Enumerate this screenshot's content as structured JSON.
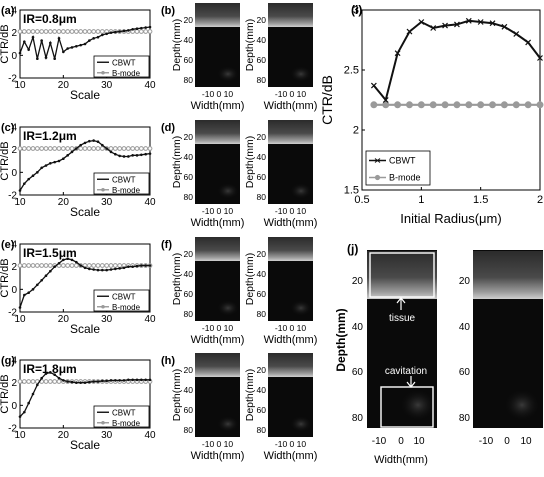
{
  "panel_labels": {
    "a": "(a)",
    "b": "(b)",
    "c": "(c)",
    "d": "(d)",
    "e": "(e)",
    "f": "(f)",
    "g": "(g)",
    "h": "(h)",
    "i": "(i)",
    "j": "(j)"
  },
  "axis_text": {
    "ctr_db": "CTR/dB",
    "scale": "Scale",
    "depth_mm": "Depth(mm)",
    "width_mm": "Width(mm)",
    "initial_radius": "Initial Radius(μm)"
  },
  "legend": {
    "cbwt": "CBWT",
    "bmode": "B-mode"
  },
  "annotations": {
    "tissue": "tissue",
    "cavitation": "cavitation"
  },
  "image_ticks": {
    "depth_small": [
      "20",
      "40",
      "60",
      "80"
    ],
    "width_small": "-10  0  10",
    "depth_large": [
      "20",
      "40",
      "60",
      "80"
    ],
    "width_large": [
      "-10",
      "0",
      "10"
    ]
  },
  "colors": {
    "cbwt": "#111111",
    "bmode": "#9a9a9a",
    "ultrasound_bg": "#0a0a0a",
    "ultrasound_tissue": "#8a8a8a"
  },
  "chart_data": [
    {
      "panel": "a",
      "type": "line",
      "title": "IR=0.8μm",
      "xlabel": "Scale",
      "ylabel": "CTR/dB",
      "xlim": [
        10,
        40
      ],
      "ylim": [
        -2,
        4
      ],
      "xticks": [
        10,
        20,
        30,
        40
      ],
      "yticks": [
        -2,
        0,
        2,
        4
      ],
      "legend": "bottom-right",
      "x": [
        10,
        11,
        12,
        13,
        14,
        15,
        16,
        17,
        18,
        19,
        20,
        21,
        22,
        23,
        24,
        25,
        26,
        27,
        28,
        29,
        30,
        31,
        32,
        33,
        34,
        35,
        36,
        37,
        38,
        39,
        40
      ],
      "series": [
        {
          "name": "CBWT",
          "values": [
            0.2,
            1.2,
            0.5,
            1.6,
            -0.3,
            1.3,
            -0.2,
            1.1,
            -0.3,
            1.5,
            0.3,
            0.6,
            0.7,
            0.8,
            0.9,
            1.0,
            1.3,
            1.5,
            1.6,
            1.8,
            1.9,
            2.0,
            2.05,
            2.1,
            2.15,
            2.2,
            2.3,
            2.35,
            2.4,
            2.45,
            2.5
          ]
        },
        {
          "name": "B-mode",
          "values": [
            2.1,
            2.1,
            2.1,
            2.1,
            2.1,
            2.1,
            2.1,
            2.1,
            2.1,
            2.1,
            2.1,
            2.1,
            2.1,
            2.1,
            2.1,
            2.1,
            2.1,
            2.1,
            2.1,
            2.1,
            2.1,
            2.1,
            2.1,
            2.1,
            2.1,
            2.1,
            2.1,
            2.1,
            2.1,
            2.1,
            2.1
          ]
        }
      ]
    },
    {
      "panel": "c",
      "type": "line",
      "title": "IR=1.2μm",
      "xlabel": "Scale",
      "ylabel": "CTR/dB",
      "xlim": [
        10,
        40
      ],
      "ylim": [
        -2,
        4
      ],
      "xticks": [
        10,
        20,
        30,
        40
      ],
      "yticks": [
        -2,
        0,
        2,
        4
      ],
      "legend": "bottom-right",
      "x": [
        10,
        11,
        12,
        13,
        14,
        15,
        16,
        17,
        18,
        19,
        20,
        21,
        22,
        23,
        24,
        25,
        26,
        27,
        28,
        29,
        30,
        31,
        32,
        33,
        34,
        35,
        36,
        37,
        38,
        39,
        40
      ],
      "series": [
        {
          "name": "CBWT",
          "values": [
            -1.6,
            -1.0,
            -0.6,
            -0.3,
            0.0,
            0.4,
            0.6,
            0.8,
            0.9,
            1.0,
            1.2,
            1.5,
            1.8,
            2.1,
            2.4,
            2.6,
            2.75,
            2.8,
            2.7,
            2.4,
            2.1,
            1.8,
            1.6,
            1.45,
            1.4,
            1.4,
            1.5,
            1.5,
            1.55,
            1.6,
            1.65
          ]
        },
        {
          "name": "B-mode",
          "values": [
            2.1,
            2.1,
            2.1,
            2.1,
            2.1,
            2.1,
            2.1,
            2.1,
            2.1,
            2.1,
            2.1,
            2.1,
            2.1,
            2.1,
            2.1,
            2.1,
            2.1,
            2.1,
            2.1,
            2.1,
            2.1,
            2.1,
            2.1,
            2.1,
            2.1,
            2.1,
            2.1,
            2.1,
            2.1,
            2.1,
            2.1
          ]
        }
      ]
    },
    {
      "panel": "e",
      "type": "line",
      "title": "IR=1.5μm",
      "xlabel": "Scale",
      "ylabel": "CTR/dB",
      "xlim": [
        10,
        40
      ],
      "ylim": [
        -2,
        4
      ],
      "xticks": [
        10,
        20,
        30,
        40
      ],
      "yticks": [
        -2,
        0,
        2,
        4
      ],
      "legend": "bottom-right",
      "x": [
        10,
        11,
        12,
        13,
        14,
        15,
        16,
        17,
        18,
        19,
        20,
        21,
        22,
        23,
        24,
        25,
        26,
        27,
        28,
        29,
        30,
        31,
        32,
        33,
        34,
        35,
        36,
        37,
        38,
        39,
        40
      ],
      "series": [
        {
          "name": "CBWT",
          "values": [
            -1.6,
            -0.5,
            -0.3,
            0.0,
            0.4,
            0.8,
            1.2,
            1.6,
            2.0,
            2.3,
            2.6,
            2.7,
            2.6,
            2.4,
            2.1,
            1.9,
            1.8,
            1.75,
            1.7,
            1.7,
            1.7,
            1.75,
            1.8,
            1.85,
            1.9,
            2.0,
            2.0,
            2.05,
            2.1,
            2.1,
            2.1
          ]
        },
        {
          "name": "B-mode",
          "values": [
            2.1,
            2.1,
            2.1,
            2.1,
            2.1,
            2.1,
            2.1,
            2.1,
            2.1,
            2.1,
            2.1,
            2.1,
            2.1,
            2.1,
            2.1,
            2.1,
            2.1,
            2.1,
            2.1,
            2.1,
            2.1,
            2.1,
            2.1,
            2.1,
            2.1,
            2.1,
            2.1,
            2.1,
            2.1,
            2.1,
            2.1
          ]
        }
      ]
    },
    {
      "panel": "g",
      "type": "line",
      "title": "IR=1.8μm",
      "xlabel": "Scale",
      "ylabel": "CTR/dB",
      "xlim": [
        10,
        40
      ],
      "ylim": [
        -2,
        4
      ],
      "xticks": [
        10,
        20,
        30,
        40
      ],
      "yticks": [
        -2,
        0,
        2,
        4
      ],
      "legend": "bottom-right",
      "x": [
        10,
        11,
        12,
        13,
        14,
        15,
        16,
        17,
        18,
        19,
        20,
        21,
        22,
        23,
        24,
        25,
        26,
        27,
        28,
        29,
        30,
        31,
        32,
        33,
        34,
        35,
        36,
        37,
        38,
        39,
        40
      ],
      "series": [
        {
          "name": "CBWT",
          "values": [
            -1.0,
            -0.6,
            0.2,
            1.0,
            1.8,
            2.4,
            2.8,
            2.9,
            2.7,
            2.4,
            2.2,
            2.1,
            2.05,
            2.0,
            2.0,
            2.0,
            2.05,
            2.1,
            2.1,
            2.15,
            2.15,
            2.2,
            2.2,
            2.2,
            2.2,
            2.25,
            2.25,
            2.25,
            2.25,
            2.25,
            2.25
          ]
        },
        {
          "name": "B-mode",
          "values": [
            2.1,
            2.1,
            2.1,
            2.1,
            2.1,
            2.1,
            2.1,
            2.1,
            2.1,
            2.1,
            2.1,
            2.1,
            2.1,
            2.1,
            2.1,
            2.1,
            2.1,
            2.1,
            2.1,
            2.1,
            2.1,
            2.1,
            2.1,
            2.1,
            2.1,
            2.1,
            2.1,
            2.1,
            2.1,
            2.1,
            2.1
          ]
        }
      ]
    },
    {
      "panel": "i",
      "type": "line",
      "title": "",
      "xlabel": "Initial Radius(μm)",
      "ylabel": "CTR/dB",
      "xlim": [
        0.5,
        2
      ],
      "ylim": [
        1.5,
        3
      ],
      "xticks": [
        0.5,
        1,
        1.5,
        2
      ],
      "yticks": [
        1.5,
        2,
        2.5,
        3
      ],
      "legend": "bottom-left",
      "x": [
        0.6,
        0.7,
        0.8,
        0.9,
        1.0,
        1.1,
        1.2,
        1.3,
        1.4,
        1.5,
        1.6,
        1.7,
        1.8,
        1.9,
        2.0
      ],
      "series": [
        {
          "name": "CBWT",
          "values": [
            2.37,
            2.25,
            2.64,
            2.82,
            2.9,
            2.85,
            2.87,
            2.88,
            2.91,
            2.9,
            2.89,
            2.86,
            2.8,
            2.73,
            2.6
          ]
        },
        {
          "name": "B-mode",
          "values": [
            2.21,
            2.21,
            2.21,
            2.21,
            2.21,
            2.21,
            2.21,
            2.21,
            2.21,
            2.21,
            2.21,
            2.21,
            2.21,
            2.21,
            2.21
          ]
        }
      ]
    }
  ]
}
